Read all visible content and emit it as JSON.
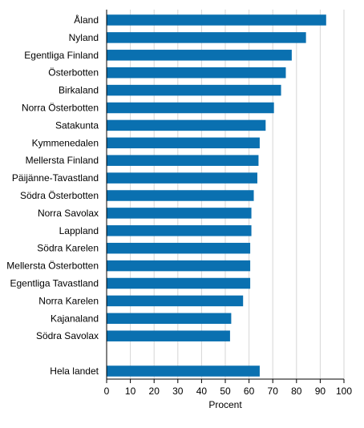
{
  "chart_data": {
    "type": "bar",
    "orientation": "horizontal",
    "title": "",
    "xlabel": "Procent",
    "ylabel": "",
    "xlim": [
      0,
      100
    ],
    "xticks": [
      0,
      10,
      20,
      30,
      40,
      50,
      60,
      70,
      80,
      90,
      100
    ],
    "grid": true,
    "legend": "none",
    "bar_color": "#0a70b0",
    "grid_color": "#d6d6d6",
    "categories": [
      "Åland",
      "Nyland",
      "Egentliga Finland",
      "Österbotten",
      "Birkaland",
      "Norra Österbotten",
      "Satakunta",
      "Kymmenedalen",
      "Mellersta Finland",
      "Päijänne-Tavastland",
      "Södra Österbotten",
      "Norra Savolax",
      "Lappland",
      "Södra Karelen",
      "Mellersta Österbotten",
      "Egentliga Tavastland",
      "Norra Karelen",
      "Kajanaland",
      "Södra Savolax",
      "Hela landet"
    ],
    "values": [
      92.5,
      84,
      78,
      75.5,
      73.5,
      70.5,
      67,
      64.5,
      64,
      63.5,
      62,
      61,
      61,
      60.5,
      60.5,
      60.5,
      57.5,
      52.5,
      52,
      64.5
    ]
  }
}
